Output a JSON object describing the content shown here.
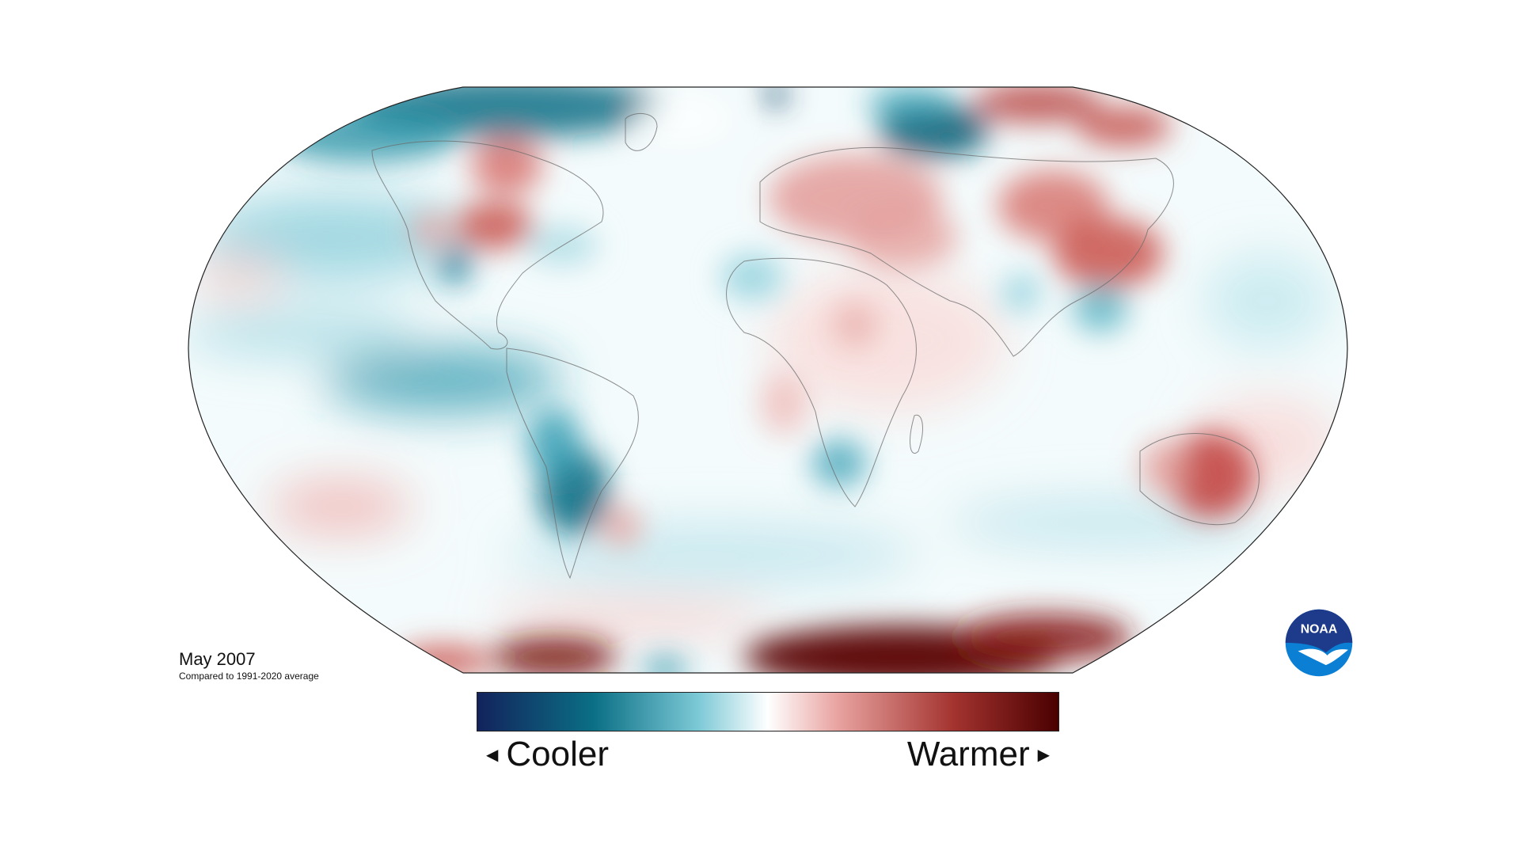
{
  "map": {
    "date": "May 2007",
    "caption": "Compared to 1991-2020 average"
  },
  "legend": {
    "left_label": "Cooler",
    "right_label": "Warmer",
    "gradient_colors": [
      "#12235c",
      "#0b6f85",
      "#7cc9d6",
      "#ffffff",
      "#e8a3a0",
      "#a3332f",
      "#4a0000"
    ]
  },
  "logo": {
    "text": "NOAA",
    "colors": {
      "top": "#1e3a8a",
      "bottom": "#0a7fd4"
    }
  }
}
